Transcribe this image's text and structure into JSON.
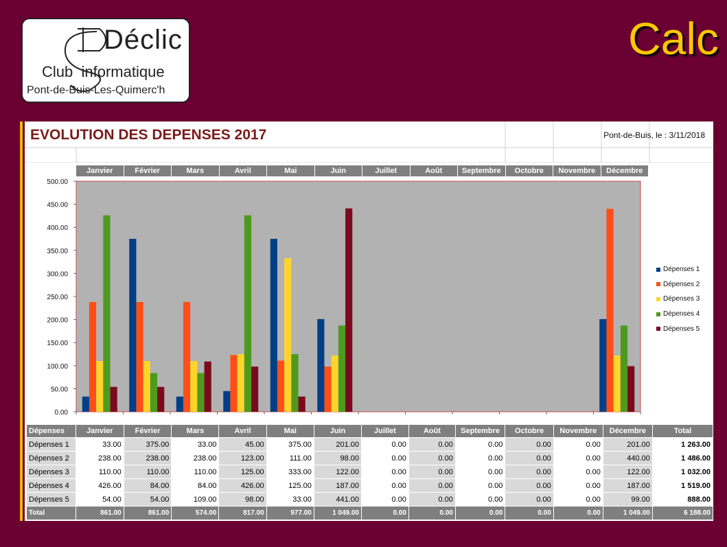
{
  "logo": {
    "brand": "Déclic",
    "club": "Club",
    "informatique": "informatique",
    "location": "Pont-de-Buis-Les-Quimerc'h"
  },
  "header": {
    "app_title": "Calc"
  },
  "sheet": {
    "title": "EVOLUTION DES DEPENSES 2017",
    "date": "Pont-de-Buis, le : 3/11/2018"
  },
  "colors": {
    "background": "#6b0033",
    "accent": "#ffc600",
    "plot_area": "#b2b2b2",
    "header_gray": "#7f7f7f"
  },
  "chart_data": {
    "type": "bar",
    "categories": [
      "Janvier",
      "Février",
      "Mars",
      "Avril",
      "Mai",
      "Juin",
      "Juillet",
      "Août",
      "Septembre",
      "Octobre",
      "Novembre",
      "Décembre"
    ],
    "series": [
      {
        "name": "Dépenses 1",
        "color": "#003f87",
        "values": [
          33,
          375,
          33,
          45,
          375,
          201,
          0,
          0,
          0,
          0,
          0,
          201
        ]
      },
      {
        "name": "Dépenses 2",
        "color": "#ff4e17",
        "values": [
          238,
          238,
          238,
          123,
          111,
          98,
          0,
          0,
          0,
          0,
          0,
          440
        ]
      },
      {
        "name": "Dépenses 3",
        "color": "#ffd52b",
        "values": [
          110,
          110,
          110,
          125,
          333,
          122,
          0,
          0,
          0,
          0,
          0,
          122
        ]
      },
      {
        "name": "Dépenses 4",
        "color": "#4e9a1f",
        "values": [
          426,
          84,
          84,
          426,
          125,
          187,
          0,
          0,
          0,
          0,
          0,
          187
        ]
      },
      {
        "name": "Dépenses 5",
        "color": "#7b0a1e",
        "values": [
          54,
          54,
          109,
          98,
          33,
          441,
          0,
          0,
          0,
          0,
          0,
          99
        ]
      }
    ],
    "yticks": [
      "500.00",
      "450.00",
      "400.00",
      "350.00",
      "300.00",
      "250.00",
      "200.00",
      "150.00",
      "100.00",
      "50.00",
      "0.00"
    ],
    "ylim": [
      0,
      500
    ],
    "legend_position": "right",
    "grid": false
  },
  "table": {
    "headers": [
      "Dépenses",
      "Janvier",
      "Février",
      "Mars",
      "Avril",
      "Mai",
      "Juin",
      "Juillet",
      "Août",
      "Septembre",
      "Octobre",
      "Novembre",
      "Décembre",
      "Total"
    ],
    "rows": [
      [
        "Dépenses 1",
        "33.00",
        "375.00",
        "33.00",
        "45.00",
        "375.00",
        "201.00",
        "0.00",
        "0.00",
        "0.00",
        "0.00",
        "0.00",
        "201.00",
        "1 263.00"
      ],
      [
        "Dépenses 2",
        "238.00",
        "238.00",
        "238.00",
        "123.00",
        "111.00",
        "98.00",
        "0.00",
        "0.00",
        "0.00",
        "0.00",
        "0.00",
        "440.00",
        "1 486.00"
      ],
      [
        "Dépenses 3",
        "110.00",
        "110.00",
        "110.00",
        "125.00",
        "333.00",
        "122.00",
        "0.00",
        "0.00",
        "0.00",
        "0.00",
        "0.00",
        "122.00",
        "1 032.00"
      ],
      [
        "Dépenses 4",
        "426.00",
        "84.00",
        "84.00",
        "426.00",
        "125.00",
        "187.00",
        "0.00",
        "0.00",
        "0.00",
        "0.00",
        "0.00",
        "187.00",
        "1 519.00"
      ],
      [
        "Dépenses 5",
        "54.00",
        "54.00",
        "109.00",
        "98.00",
        "33.00",
        "441.00",
        "0.00",
        "0.00",
        "0.00",
        "0.00",
        "0.00",
        "99.00",
        "888.00"
      ]
    ],
    "total_row": [
      "Total",
      "861.00",
      "861.00",
      "574.00",
      "817.00",
      "977.00",
      "1 049.00",
      "0.00",
      "0.00",
      "0.00",
      "0.00",
      "0.00",
      "1 049.00",
      "6 188.00"
    ]
  }
}
